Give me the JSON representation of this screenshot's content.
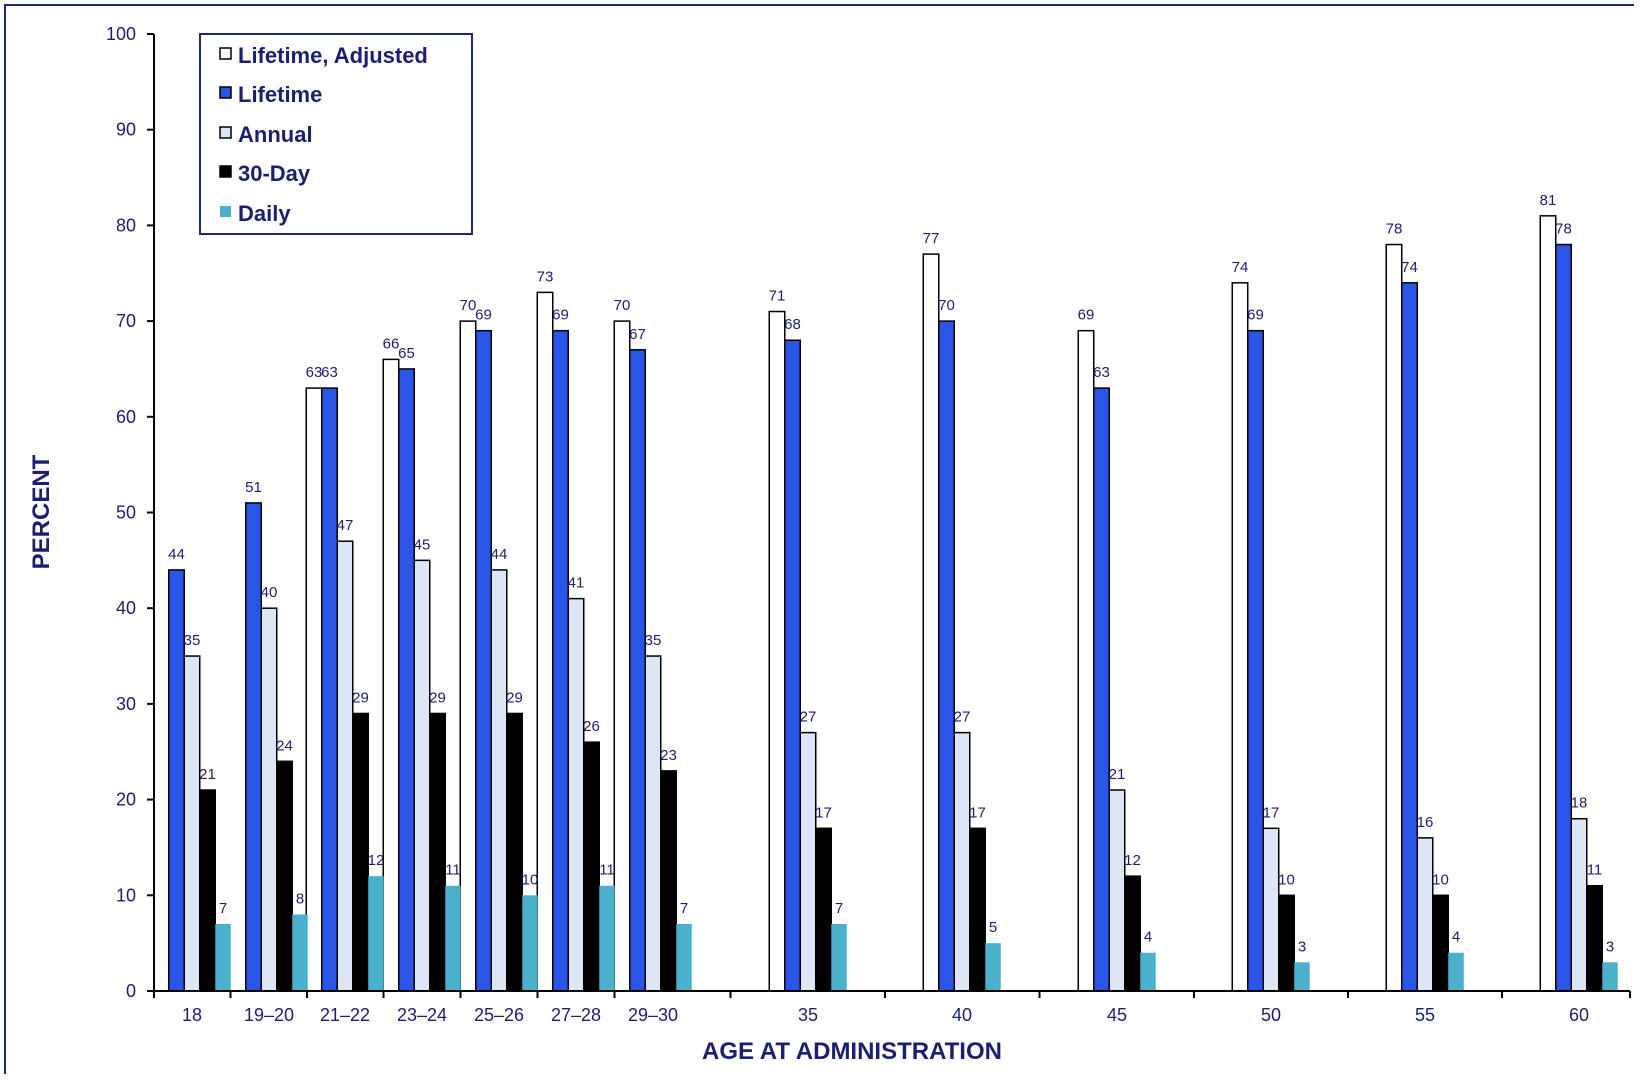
{
  "chart_data": {
    "type": "bar",
    "xlabel": "AGE AT ADMINISTRATION",
    "ylabel": "PERCENT",
    "ylim": [
      0,
      100
    ],
    "yticks": [
      0,
      10,
      20,
      30,
      40,
      50,
      60,
      70,
      80,
      90,
      100
    ],
    "grid": false,
    "legend_position": "top-left",
    "categories": [
      "18",
      "19–20",
      "21–22",
      "23–24",
      "25–26",
      "27–28",
      "29–30",
      "35",
      "40",
      "45",
      "50",
      "55",
      "60"
    ],
    "series": [
      {
        "name": "Lifetime, Adjusted",
        "color": "#ffffff",
        "values": [
          null,
          null,
          63,
          66,
          70,
          73,
          70,
          71,
          77,
          69,
          74,
          78,
          81
        ]
      },
      {
        "name": "Lifetime",
        "color": "#2b55e6",
        "values": [
          44,
          51,
          63,
          65,
          69,
          69,
          67,
          68,
          70,
          63,
          69,
          74,
          78
        ]
      },
      {
        "name": "Annual",
        "color": "#dde6f5",
        "values": [
          35,
          40,
          47,
          45,
          44,
          41,
          35,
          27,
          27,
          21,
          17,
          16,
          18
        ]
      },
      {
        "name": "30-Day",
        "color": "#000000",
        "values": [
          21,
          24,
          29,
          29,
          29,
          26,
          23,
          17,
          17,
          12,
          10,
          10,
          11
        ]
      },
      {
        "name": "Daily",
        "color": "#4ab0cc",
        "values": [
          7,
          8,
          12,
          11,
          10,
          11,
          7,
          7,
          5,
          4,
          3,
          4,
          3
        ]
      }
    ]
  }
}
